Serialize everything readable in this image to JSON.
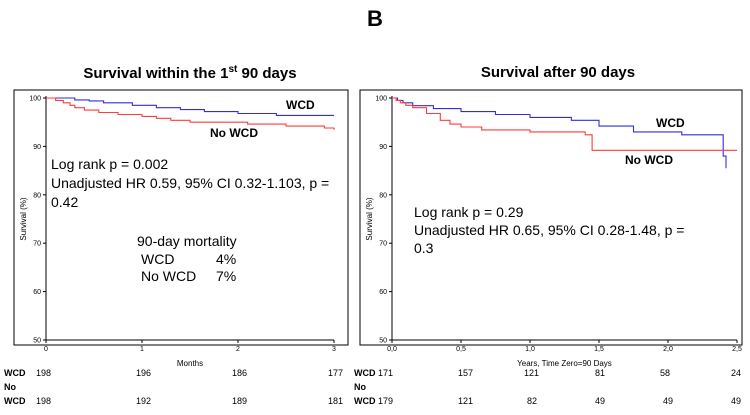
{
  "figure": {
    "panel_letter": "B"
  },
  "chart_data": [
    {
      "type": "line",
      "title_pre": "Survival within the 1",
      "title_sup": "st",
      "title_post": " 90 days",
      "xlabel": "Months",
      "ylabel": "Survival (%)",
      "xlim": [
        0,
        3
      ],
      "ylim": [
        50,
        100
      ],
      "x_ticks": [
        0,
        1,
        2,
        3
      ],
      "x_tick_labels": [
        "0",
        "1",
        "2",
        "3"
      ],
      "y_ticks": [
        50,
        60,
        70,
        80,
        90,
        100
      ],
      "y_tick_labels": [
        "50",
        "60",
        "70",
        "80",
        "90",
        "100"
      ],
      "series": [
        {
          "name": "WCD",
          "color": "#2e2ee6",
          "x": [
            0,
            0.3,
            0.45,
            0.6,
            0.9,
            1.15,
            1.4,
            1.65,
            2.0,
            2.4,
            3.0
          ],
          "y": [
            100,
            99.6,
            99.4,
            99.0,
            98.5,
            98.0,
            97.6,
            97.2,
            96.8,
            96.4,
            96.4
          ]
        },
        {
          "name": "No WCD",
          "color": "#ff3b3b",
          "x": [
            0,
            0.1,
            0.18,
            0.25,
            0.3,
            0.4,
            0.55,
            0.75,
            1.0,
            1.15,
            1.3,
            1.5,
            1.8,
            2.1,
            2.5,
            2.9,
            3.0
          ],
          "y": [
            100,
            99.5,
            99.0,
            98.5,
            98.0,
            97.5,
            97.0,
            96.6,
            96.2,
            95.8,
            95.4,
            95.0,
            95.0,
            94.6,
            94.2,
            93.8,
            93.4
          ]
        }
      ],
      "series_labels": [
        "WCD",
        "No WCD"
      ],
      "annotation": {
        "line1": "Log rank p = 0.002",
        "line2": "Unadjusted HR 0.59, 95% CI 0.32-1.103, p =",
        "line3": "0.42"
      },
      "mortality": {
        "title": "90-day mortality",
        "rows": [
          {
            "label": "WCD",
            "value": "4%"
          },
          {
            "label": "No WCD",
            "value": "7%"
          }
        ]
      },
      "risk_table": {
        "row1_label": "WCD",
        "row2_label_a": "No",
        "row2_label_b": "WCD",
        "wcd": [
          "198",
          "196",
          "186",
          "177"
        ],
        "no_wcd": [
          "198",
          "192",
          "189",
          "181"
        ]
      }
    },
    {
      "type": "line",
      "title": "Survival after 90 days",
      "xlabel": "Years, Time Zero=90 Days",
      "ylabel": "Survival (%)",
      "xlim": [
        0,
        2.5
      ],
      "ylim": [
        50,
        100
      ],
      "x_ticks": [
        0,
        0.5,
        1.0,
        1.5,
        2.0,
        2.5
      ],
      "x_tick_labels": [
        "0,0",
        "0,5",
        "1,0",
        "1,5",
        "2,0",
        "2,5"
      ],
      "y_ticks": [
        50,
        60,
        70,
        80,
        90,
        100
      ],
      "y_tick_labels": [
        "50",
        "60",
        "70",
        "80",
        "90",
        "100"
      ],
      "series": [
        {
          "name": "WCD",
          "color": "#2e2ee6",
          "x": [
            0,
            0.04,
            0.08,
            0.15,
            0.3,
            0.5,
            0.75,
            1.0,
            1.3,
            1.5,
            1.75,
            2.1,
            2.38,
            2.4,
            2.42
          ],
          "y": [
            100,
            99.5,
            99.0,
            98.4,
            97.8,
            97.2,
            96.6,
            96.0,
            95.4,
            94.2,
            93.0,
            92.4,
            92.4,
            88.0,
            85.5
          ]
        },
        {
          "name": "No WCD",
          "color": "#ff3b3b",
          "x": [
            0,
            0.03,
            0.06,
            0.1,
            0.15,
            0.25,
            0.35,
            0.42,
            0.5,
            0.65,
            1.0,
            1.4,
            1.45,
            1.8,
            2.2,
            2.5
          ],
          "y": [
            100,
            99.5,
            99.0,
            98.5,
            98.0,
            96.8,
            95.4,
            94.6,
            94.0,
            93.4,
            93.0,
            92.4,
            89.2,
            89.2,
            89.2,
            89.2
          ]
        }
      ],
      "series_labels": [
        "WCD",
        "No WCD"
      ],
      "annotation": {
        "line1": "Log rank p = 0.29",
        "line2": "Unadjusted HR 0.65, 95% CI 0.28-1.48, p =",
        "line3": "0.3"
      },
      "risk_table": {
        "row1_label": "WCD",
        "row2_label_a": "No",
        "row2_label_b": "WCD",
        "wcd": [
          "171",
          "157",
          "121",
          "81",
          "58",
          "24"
        ],
        "no_wcd": [
          "179",
          "121",
          "82",
          "49",
          "49",
          "49"
        ]
      }
    }
  ]
}
